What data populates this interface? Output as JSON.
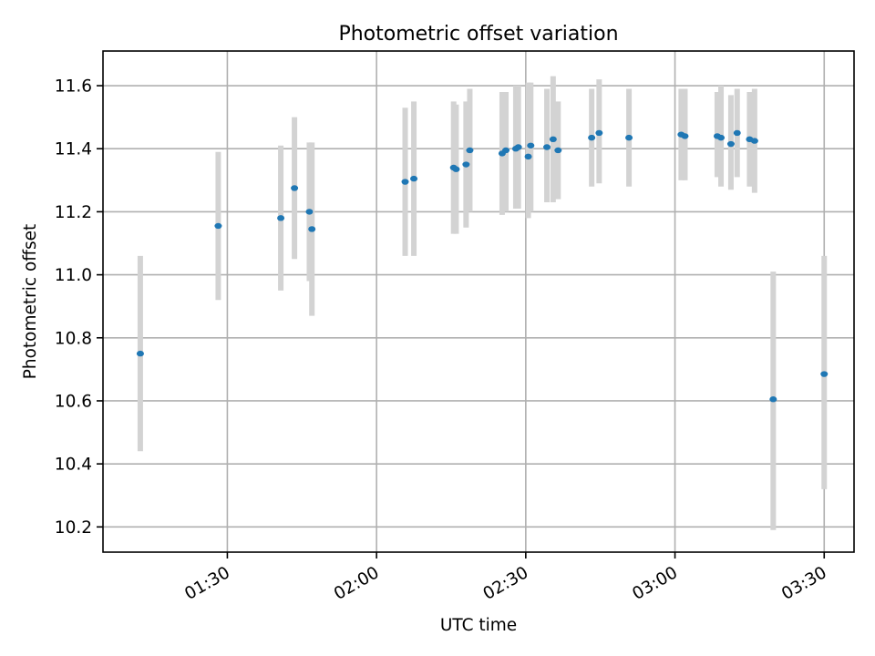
{
  "chart_data": {
    "type": "scatter",
    "title": "Photometric offset variation",
    "xlabel": "UTC time",
    "ylabel": "Photometric offset",
    "x_unit": "HH:MM (UTC)",
    "xlim": [
      "01:05",
      "03:36"
    ],
    "ylim": [
      10.12,
      11.71
    ],
    "xticks": [
      "01:30",
      "02:00",
      "02:30",
      "03:00",
      "03:30"
    ],
    "yticks": [
      10.2,
      10.4,
      10.6,
      10.8,
      11.0,
      11.2,
      11.4,
      11.6
    ],
    "grid": true,
    "legend": "none",
    "series": [
      {
        "marker_color": "#1f77b4",
        "errorbar_color": "#d3d3d3",
        "points": [
          {
            "x": "01:12:30",
            "y": 10.75,
            "err_low": 10.44,
            "err_high": 11.06
          },
          {
            "x": "01:28:10",
            "y": 11.155,
            "err_low": 10.92,
            "err_high": 11.39
          },
          {
            "x": "01:40:45",
            "y": 11.18,
            "err_low": 10.95,
            "err_high": 11.41
          },
          {
            "x": "01:43:30",
            "y": 11.275,
            "err_low": 11.05,
            "err_high": 11.5
          },
          {
            "x": "01:46:30",
            "y": 11.2,
            "err_low": 10.98,
            "err_high": 11.42
          },
          {
            "x": "01:47:00",
            "y": 11.145,
            "err_low": 10.87,
            "err_high": 11.42
          },
          {
            "x": "02:05:45",
            "y": 11.295,
            "err_low": 11.06,
            "err_high": 11.53
          },
          {
            "x": "02:07:30",
            "y": 11.305,
            "err_low": 11.06,
            "err_high": 11.55
          },
          {
            "x": "02:15:30",
            "y": 11.34,
            "err_low": 11.13,
            "err_high": 11.55
          },
          {
            "x": "02:16:00",
            "y": 11.335,
            "err_low": 11.13,
            "err_high": 11.54
          },
          {
            "x": "02:18:00",
            "y": 11.35,
            "err_low": 11.15,
            "err_high": 11.55
          },
          {
            "x": "02:18:45",
            "y": 11.395,
            "err_low": 11.2,
            "err_high": 11.59
          },
          {
            "x": "02:25:15",
            "y": 11.385,
            "err_low": 11.19,
            "err_high": 11.58
          },
          {
            "x": "02:26:00",
            "y": 11.395,
            "err_low": 11.2,
            "err_high": 11.58
          },
          {
            "x": "02:28:00",
            "y": 11.4,
            "err_low": 11.21,
            "err_high": 11.6
          },
          {
            "x": "02:28:30",
            "y": 11.405,
            "err_low": 11.21,
            "err_high": 11.6
          },
          {
            "x": "02:30:30",
            "y": 11.375,
            "err_low": 11.18,
            "err_high": 11.61
          },
          {
            "x": "02:31:00",
            "y": 11.41,
            "err_low": 11.2,
            "err_high": 11.61
          },
          {
            "x": "02:34:15",
            "y": 11.405,
            "err_low": 11.23,
            "err_high": 11.59
          },
          {
            "x": "02:35:30",
            "y": 11.43,
            "err_low": 11.23,
            "err_high": 11.63
          },
          {
            "x": "02:36:30",
            "y": 11.395,
            "err_low": 11.24,
            "err_high": 11.55
          },
          {
            "x": "02:43:15",
            "y": 11.435,
            "err_low": 11.28,
            "err_high": 11.59
          },
          {
            "x": "02:44:45",
            "y": 11.45,
            "err_low": 11.29,
            "err_high": 11.62
          },
          {
            "x": "02:50:45",
            "y": 11.435,
            "err_low": 11.28,
            "err_high": 11.59
          },
          {
            "x": "03:01:15",
            "y": 11.445,
            "err_low": 11.3,
            "err_high": 11.59
          },
          {
            "x": "03:02:00",
            "y": 11.44,
            "err_low": 11.3,
            "err_high": 11.59
          },
          {
            "x": "03:08:30",
            "y": 11.44,
            "err_low": 11.31,
            "err_high": 11.58
          },
          {
            "x": "03:09:15",
            "y": 11.435,
            "err_low": 11.28,
            "err_high": 11.6
          },
          {
            "x": "03:11:15",
            "y": 11.415,
            "err_low": 11.27,
            "err_high": 11.57
          },
          {
            "x": "03:12:30",
            "y": 11.45,
            "err_low": 11.31,
            "err_high": 11.59
          },
          {
            "x": "03:15:00",
            "y": 11.43,
            "err_low": 11.28,
            "err_high": 11.58
          },
          {
            "x": "03:16:00",
            "y": 11.425,
            "err_low": 11.26,
            "err_high": 11.59
          },
          {
            "x": "03:19:45",
            "y": 10.605,
            "err_low": 10.19,
            "err_high": 11.01
          },
          {
            "x": "03:30:00",
            "y": 10.685,
            "err_low": 10.32,
            "err_high": 11.06
          }
        ]
      }
    ]
  }
}
